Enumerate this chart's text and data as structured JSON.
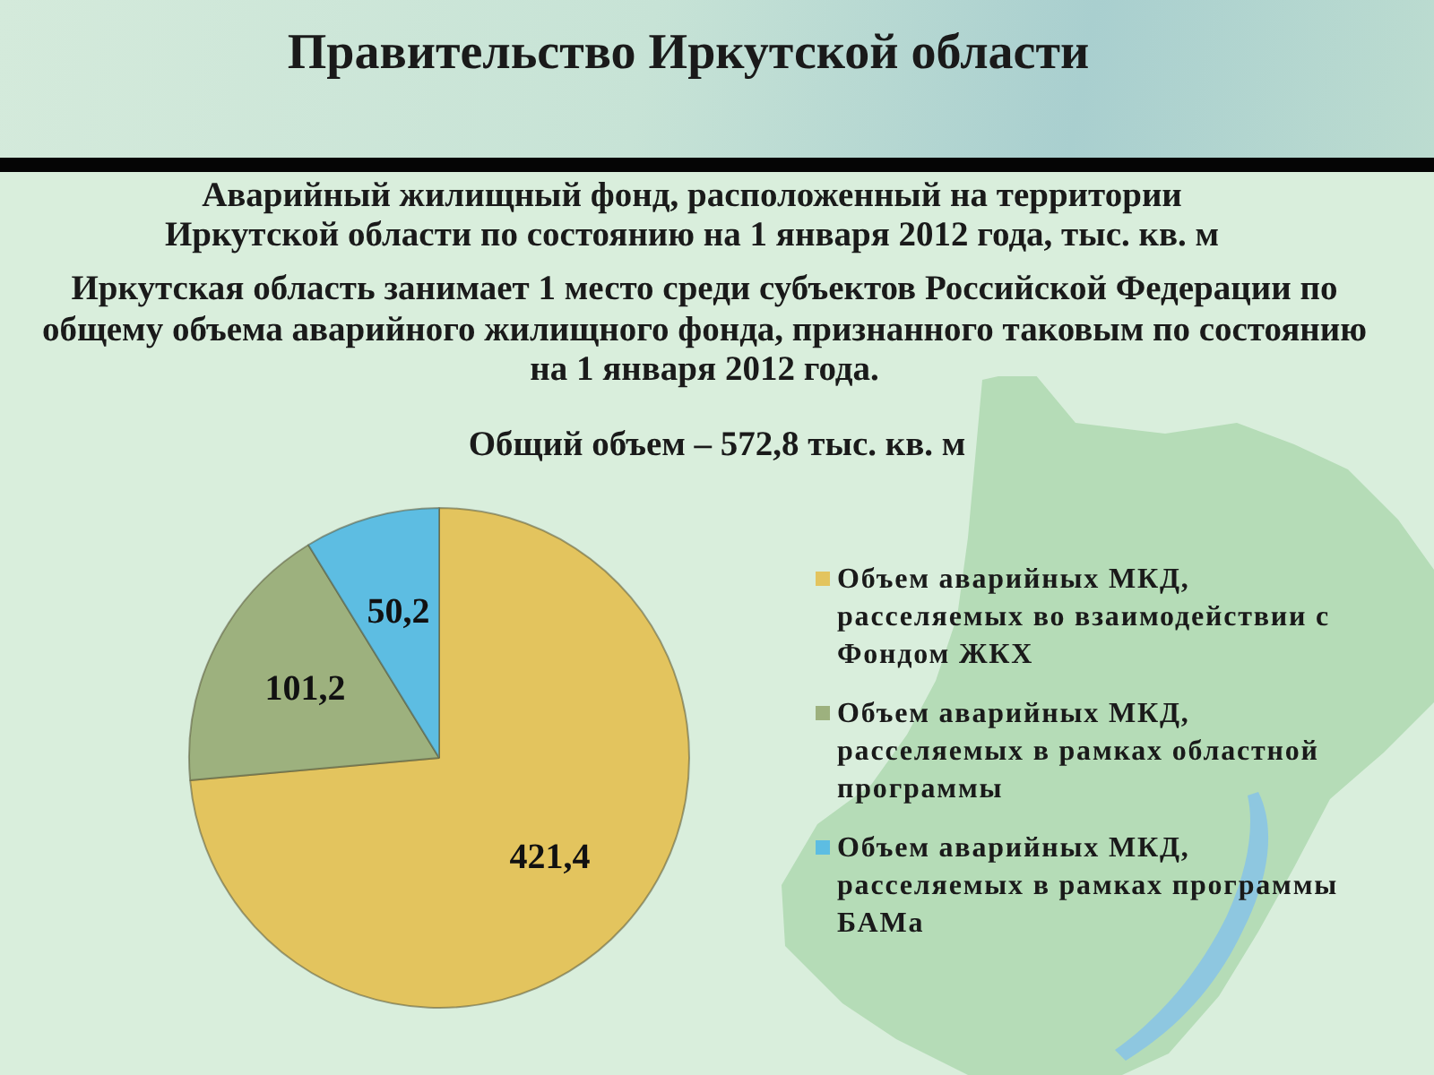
{
  "chart_data": {
    "type": "pie",
    "title": "Аварийный жилищный фонд, расположенный на территории Иркутской области по состоянию на 1 января 2012 года, тыс. кв. м",
    "annotations": [
      "Правительство Иркутской области",
      "Иркутская область занимает 1 место среди субъектов Российской Федерации по общему объема аварийного жилищного фонда, признанного таковым по состоянию на 1 января 2012 года.",
      "Общий объем – 572,8 тыс. кв. м"
    ],
    "categories": [
      "Объем аварийных МКД, расселяемых во взаимодействии с Фондом ЖКХ",
      "Объем аварийных МКД, расселяемых в рамках областной программы",
      "Объем аварийных МКД, расселяемых в рамках программы БАМа"
    ],
    "values": [
      421.4,
      101.2,
      50.2
    ],
    "colors": [
      "#e3c45e",
      "#9db17e",
      "#5dbde2"
    ],
    "value_labels": [
      "421,4",
      "101,2",
      "50,2"
    ],
    "legend": "right"
  }
}
